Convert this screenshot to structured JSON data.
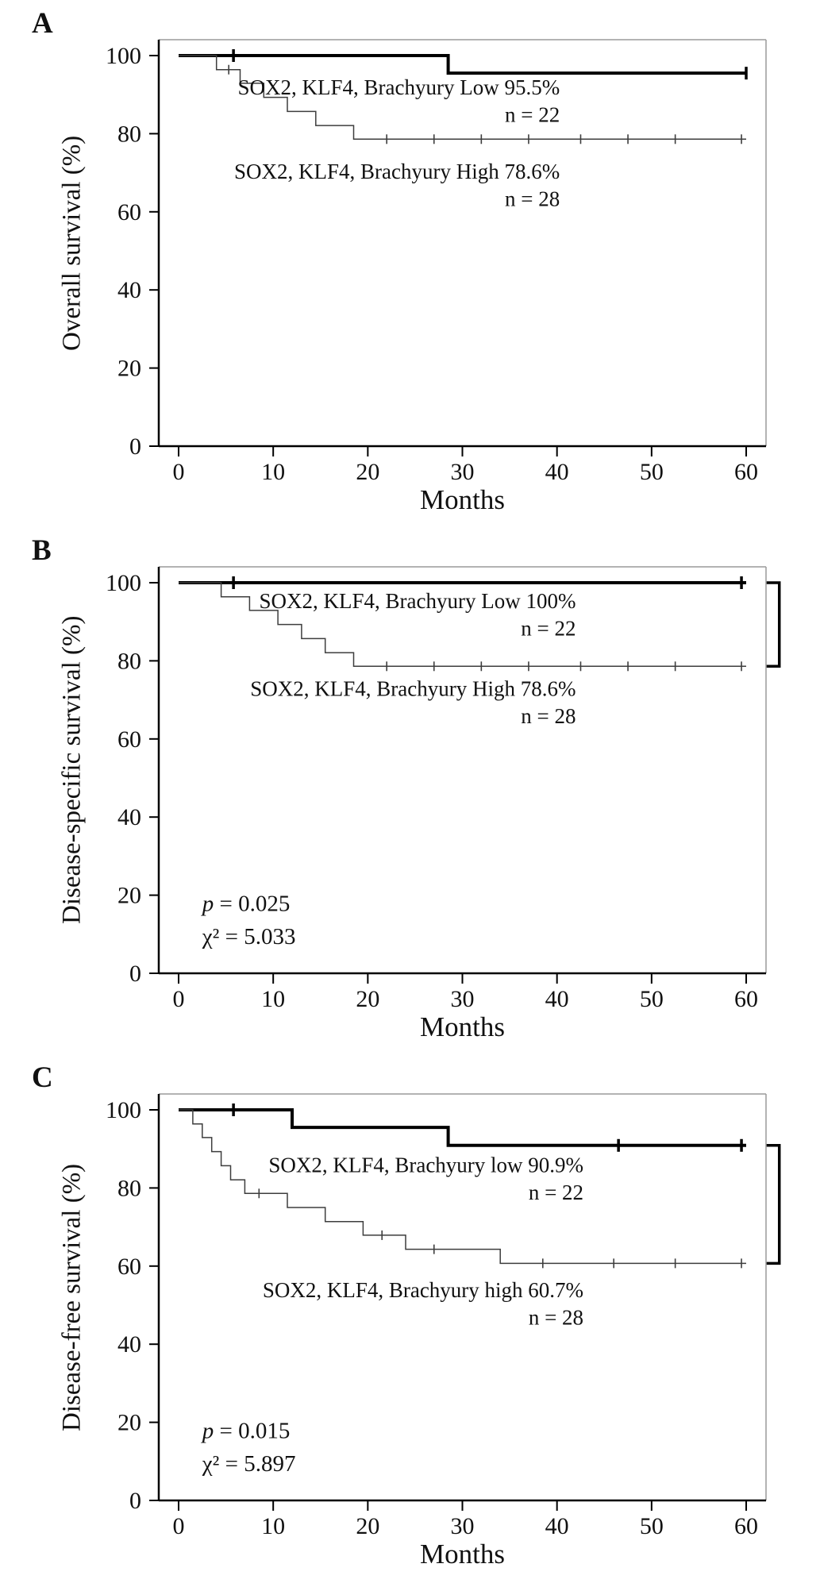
{
  "colors": {
    "background": "#ffffff",
    "curve_thick": "#000000",
    "curve_thin": "#3d3d3d",
    "frame_light": "#9a9a9a",
    "axis": "#000000",
    "text": "#111111"
  },
  "chart_data": [
    {
      "type": "line",
      "chart_kind": "kaplan-meier-step",
      "panel": "A",
      "xlabel": "Months",
      "ylabel": "Overall survival (%)",
      "xlim": [
        0,
        64
      ],
      "ylim": [
        0,
        105
      ],
      "xticks": [
        0,
        10,
        20,
        30,
        40,
        50,
        60
      ],
      "yticks": [
        0,
        20,
        40,
        60,
        80,
        100
      ],
      "grid": false,
      "legend_position": "none (inline annotations)",
      "series": [
        {
          "name": "SOX2, KLF4, Brachyury Low",
          "n": 22,
          "final_percent": 95.5,
          "line_weight": "thick",
          "steps": [
            [
              0,
              100
            ],
            [
              28.5,
              100
            ],
            [
              28.5,
              95.5
            ],
            [
              60,
              95.5
            ]
          ],
          "censor_marks": [
            [
              5.8,
              100
            ],
            [
              60,
              95.5
            ]
          ]
        },
        {
          "name": "SOX2, KLF4, Brachyury High",
          "n": 28,
          "final_percent": 78.6,
          "line_weight": "thin",
          "steps": [
            [
              0,
              100
            ],
            [
              4,
              100
            ],
            [
              4,
              96.4
            ],
            [
              6.5,
              96.4
            ],
            [
              6.5,
              92.9
            ],
            [
              9,
              92.9
            ],
            [
              9,
              89.3
            ],
            [
              11.5,
              89.3
            ],
            [
              11.5,
              85.7
            ],
            [
              14.5,
              85.7
            ],
            [
              14.5,
              82.1
            ],
            [
              18.5,
              82.1
            ],
            [
              18.5,
              78.6
            ],
            [
              60,
              78.6
            ]
          ],
          "censor_marks": [
            [
              5.3,
              96.4
            ],
            [
              22,
              78.6
            ],
            [
              27,
              78.6
            ],
            [
              32,
              78.6
            ],
            [
              37,
              78.6
            ],
            [
              42.5,
              78.6
            ],
            [
              47.5,
              78.6
            ],
            [
              52.5,
              78.6
            ],
            [
              59.5,
              78.6
            ]
          ]
        }
      ],
      "annotations": [
        {
          "text": "SOX2, KLF4, Brachyury Low 95.5%",
          "x": 40.3,
          "y": 90
        },
        {
          "text": "n = 22",
          "x": 40.3,
          "y": 83
        },
        {
          "text": "SOX2, KLF4, Brachyury High 78.6%",
          "x": 40.3,
          "y": 68.5
        },
        {
          "text": "n = 28",
          "x": 40.3,
          "y": 61.5
        }
      ],
      "stats": [],
      "bracket": null
    },
    {
      "type": "line",
      "chart_kind": "kaplan-meier-step",
      "panel": "B",
      "xlabel": "Months",
      "ylabel": "Disease-specific survival (%)",
      "xlim": [
        0,
        64
      ],
      "ylim": [
        0,
        105
      ],
      "xticks": [
        0,
        10,
        20,
        30,
        40,
        50,
        60
      ],
      "yticks": [
        0,
        20,
        40,
        60,
        80,
        100
      ],
      "grid": false,
      "legend_position": "none (inline annotations)",
      "series": [
        {
          "name": "SOX2, KLF4, Brachyury Low",
          "n": 22,
          "final_percent": 100,
          "line_weight": "thick",
          "steps": [
            [
              0,
              100
            ],
            [
              60,
              100
            ]
          ],
          "censor_marks": [
            [
              5.8,
              100
            ],
            [
              59.5,
              100
            ]
          ]
        },
        {
          "name": "SOX2, KLF4, Brachyury High",
          "n": 28,
          "final_percent": 78.6,
          "line_weight": "thin",
          "steps": [
            [
              0,
              100
            ],
            [
              4.5,
              100
            ],
            [
              4.5,
              96.4
            ],
            [
              7.5,
              96.4
            ],
            [
              7.5,
              92.9
            ],
            [
              10.5,
              92.9
            ],
            [
              10.5,
              89.3
            ],
            [
              13,
              89.3
            ],
            [
              13,
              85.7
            ],
            [
              15.5,
              85.7
            ],
            [
              15.5,
              82.1
            ],
            [
              18.5,
              82.1
            ],
            [
              18.5,
              78.6
            ],
            [
              60,
              78.6
            ]
          ],
          "censor_marks": [
            [
              22,
              78.6
            ],
            [
              27,
              78.6
            ],
            [
              32,
              78.6
            ],
            [
              37,
              78.6
            ],
            [
              42.5,
              78.6
            ],
            [
              47.5,
              78.6
            ],
            [
              52.5,
              78.6
            ],
            [
              59.5,
              78.6
            ]
          ]
        }
      ],
      "annotations": [
        {
          "text": "SOX2, KLF4, Brachyury Low 100%",
          "x": 42,
          "y": 93.5
        },
        {
          "text": "n = 22",
          "x": 42,
          "y": 86.5
        },
        {
          "text": "SOX2, KLF4, Brachyury High 78.6%",
          "x": 42,
          "y": 71
        },
        {
          "text": "n = 28",
          "x": 42,
          "y": 64
        }
      ],
      "stats": [
        {
          "text": "p = 0.025",
          "x": 2.5,
          "y": 16
        },
        {
          "text": "χ² = 5.033",
          "x": 2.5,
          "y": 7.5
        }
      ],
      "bracket": {
        "x_month": 63.5,
        "top": 100,
        "bottom": 78.6
      }
    },
    {
      "type": "line",
      "chart_kind": "kaplan-meier-step",
      "panel": "C",
      "xlabel": "Months",
      "ylabel": "Disease-free survival (%)",
      "xlim": [
        0,
        64
      ],
      "ylim": [
        0,
        105
      ],
      "xticks": [
        0,
        10,
        20,
        30,
        40,
        50,
        60
      ],
      "yticks": [
        0,
        20,
        40,
        60,
        80,
        100
      ],
      "grid": false,
      "legend_position": "none (inline annotations)",
      "series": [
        {
          "name": "SOX2, KLF4, Brachyury low",
          "n": 22,
          "final_percent": 90.9,
          "line_weight": "thick",
          "steps": [
            [
              0,
              100
            ],
            [
              12,
              100
            ],
            [
              12,
              95.5
            ],
            [
              28.5,
              95.5
            ],
            [
              28.5,
              90.9
            ],
            [
              60,
              90.9
            ]
          ],
          "censor_marks": [
            [
              5.8,
              100
            ],
            [
              46.5,
              90.9
            ],
            [
              59.5,
              90.9
            ]
          ]
        },
        {
          "name": "SOX2, KLF4, Brachyury high",
          "n": 28,
          "final_percent": 60.7,
          "line_weight": "thin",
          "steps": [
            [
              0,
              100
            ],
            [
              1.5,
              100
            ],
            [
              1.5,
              96.4
            ],
            [
              2.5,
              96.4
            ],
            [
              2.5,
              92.9
            ],
            [
              3.5,
              92.9
            ],
            [
              3.5,
              89.3
            ],
            [
              4.5,
              89.3
            ],
            [
              4.5,
              85.7
            ],
            [
              5.5,
              85.7
            ],
            [
              5.5,
              82.1
            ],
            [
              7,
              82.1
            ],
            [
              7,
              78.6
            ],
            [
              11.5,
              78.6
            ],
            [
              11.5,
              75
            ],
            [
              15.5,
              75
            ],
            [
              15.5,
              71.4
            ],
            [
              19.5,
              71.4
            ],
            [
              19.5,
              67.9
            ],
            [
              24,
              67.9
            ],
            [
              24,
              64.3
            ],
            [
              34,
              64.3
            ],
            [
              34,
              60.7
            ],
            [
              60,
              60.7
            ]
          ],
          "censor_marks": [
            [
              8.5,
              78.6
            ],
            [
              21.5,
              67.9
            ],
            [
              27,
              64.3
            ],
            [
              38.5,
              60.7
            ],
            [
              46,
              60.7
            ],
            [
              52.5,
              60.7
            ],
            [
              59.5,
              60.7
            ]
          ]
        }
      ],
      "annotations": [
        {
          "text": "SOX2, KLF4, Brachyury low 90.9%",
          "x": 42.8,
          "y": 84
        },
        {
          "text": "n = 22",
          "x": 42.8,
          "y": 77
        },
        {
          "text": "SOX2, KLF4, Brachyury high 60.7%",
          "x": 42.8,
          "y": 52
        },
        {
          "text": "n = 28",
          "x": 42.8,
          "y": 45
        }
      ],
      "stats": [
        {
          "text": "p = 0.015",
          "x": 2.5,
          "y": 16
        },
        {
          "text": "χ² = 5.897",
          "x": 2.5,
          "y": 7.5
        }
      ],
      "bracket": {
        "x_month": 63.5,
        "top": 90.9,
        "bottom": 60.7
      }
    }
  ]
}
